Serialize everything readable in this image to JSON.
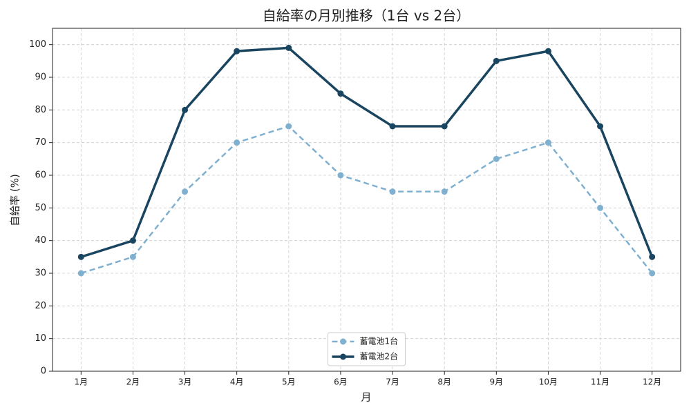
{
  "chart_data": {
    "type": "line",
    "title": "自給率の月別推移（1台 vs 2台）",
    "x_label": "月",
    "y_label": "自給率 (%)",
    "categories": [
      "1月",
      "2月",
      "3月",
      "4月",
      "5月",
      "6月",
      "7月",
      "8月",
      "9月",
      "10月",
      "11月",
      "12月"
    ],
    "series": [
      {
        "name": "蓄電池1台",
        "color": "#7fb0d0",
        "linestyle": "dashed",
        "values": [
          30,
          35,
          55,
          70,
          75,
          60,
          55,
          55,
          65,
          70,
          50,
          30
        ]
      },
      {
        "name": "蓄電池2台",
        "color": "#1a4560",
        "linestyle": "solid",
        "values": [
          35,
          40,
          80,
          98,
          99,
          85,
          75,
          75,
          95,
          98,
          75,
          35
        ]
      }
    ],
    "ylim": [
      0,
      105
    ],
    "yticks": [
      0,
      10,
      20,
      30,
      40,
      50,
      60,
      70,
      80,
      90,
      100
    ],
    "grid": true,
    "legend": "lower center"
  }
}
